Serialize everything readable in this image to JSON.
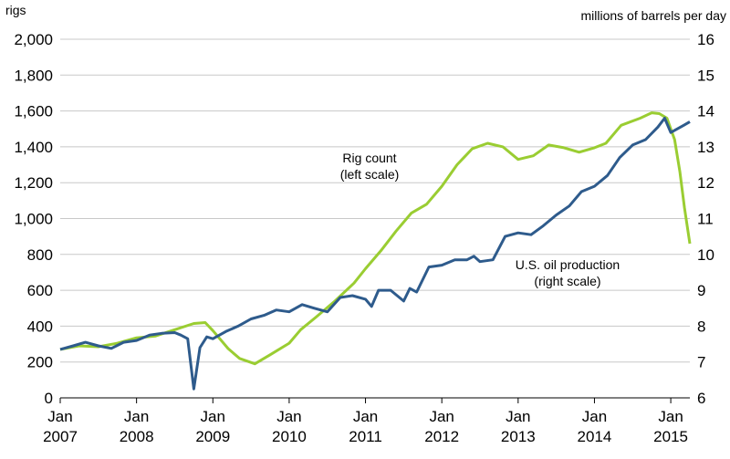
{
  "chart_data": {
    "type": "line",
    "title": "",
    "left_axis": {
      "label": "rigs",
      "ylim": [
        0,
        2000
      ],
      "ticks": [
        "0",
        "200",
        "400",
        "600",
        "800",
        "1,000",
        "1,200",
        "1,400",
        "1,600",
        "1,800",
        "2,000"
      ],
      "tick_values": [
        0,
        200,
        400,
        600,
        800,
        1000,
        1200,
        1400,
        1600,
        1800,
        2000
      ]
    },
    "right_axis": {
      "label": "millions of barrels per day",
      "ylim": [
        6,
        16
      ],
      "ticks": [
        "6",
        "7",
        "8",
        "9",
        "10",
        "11",
        "12",
        "13",
        "14",
        "15",
        "16"
      ],
      "tick_values": [
        6,
        7,
        8,
        9,
        10,
        11,
        12,
        13,
        14,
        15,
        16
      ]
    },
    "x_axis": {
      "xlim": [
        2007.0,
        2015.25
      ],
      "ticks": [
        {
          "value": 2007,
          "month": "Jan",
          "year": "2007"
        },
        {
          "value": 2008,
          "month": "Jan",
          "year": "2008"
        },
        {
          "value": 2009,
          "month": "Jan",
          "year": "2009"
        },
        {
          "value": 2010,
          "month": "Jan",
          "year": "2010"
        },
        {
          "value": 2011,
          "month": "Jan",
          "year": "2011"
        },
        {
          "value": 2012,
          "month": "Jan",
          "year": "2012"
        },
        {
          "value": 2013,
          "month": "Jan",
          "year": "2013"
        },
        {
          "value": 2014,
          "month": "Jan",
          "year": "2014"
        },
        {
          "value": 2015,
          "month": "Jan",
          "year": "2015"
        }
      ]
    },
    "series": [
      {
        "name": "Rig count",
        "axis": "left",
        "color": "#9ACD32",
        "annotation": [
          "Rig count",
          "(left scale)"
        ],
        "points": [
          [
            2007.0,
            270
          ],
          [
            2007.25,
            290
          ],
          [
            2007.5,
            285
          ],
          [
            2007.75,
            305
          ],
          [
            2008.0,
            335
          ],
          [
            2008.25,
            345
          ],
          [
            2008.5,
            380
          ],
          [
            2008.75,
            415
          ],
          [
            2008.9,
            420
          ],
          [
            2009.0,
            375
          ],
          [
            2009.2,
            275
          ],
          [
            2009.35,
            220
          ],
          [
            2009.55,
            190
          ],
          [
            2009.75,
            240
          ],
          [
            2010.0,
            305
          ],
          [
            2010.15,
            380
          ],
          [
            2010.35,
            450
          ],
          [
            2010.6,
            540
          ],
          [
            2010.85,
            640
          ],
          [
            2011.0,
            720
          ],
          [
            2011.2,
            820
          ],
          [
            2011.4,
            930
          ],
          [
            2011.6,
            1030
          ],
          [
            2011.8,
            1080
          ],
          [
            2012.0,
            1180
          ],
          [
            2012.2,
            1300
          ],
          [
            2012.4,
            1390
          ],
          [
            2012.6,
            1420
          ],
          [
            2012.8,
            1400
          ],
          [
            2013.0,
            1330
          ],
          [
            2013.2,
            1350
          ],
          [
            2013.4,
            1410
          ],
          [
            2013.6,
            1395
          ],
          [
            2013.8,
            1370
          ],
          [
            2014.0,
            1395
          ],
          [
            2014.15,
            1420
          ],
          [
            2014.35,
            1520
          ],
          [
            2014.6,
            1560
          ],
          [
            2014.75,
            1590
          ],
          [
            2014.85,
            1585
          ],
          [
            2014.95,
            1560
          ],
          [
            2015.05,
            1440
          ],
          [
            2015.12,
            1260
          ],
          [
            2015.18,
            1060
          ],
          [
            2015.25,
            860
          ]
        ]
      },
      {
        "name": "U.S. oil production",
        "axis": "right",
        "color": "#2E5B8C",
        "annotation": [
          "U.S. oil production",
          "(right scale)"
        ],
        "points": [
          [
            2007.0,
            7.35
          ],
          [
            2007.17,
            7.45
          ],
          [
            2007.33,
            7.55
          ],
          [
            2007.5,
            7.45
          ],
          [
            2007.67,
            7.38
          ],
          [
            2007.83,
            7.55
          ],
          [
            2008.0,
            7.6
          ],
          [
            2008.17,
            7.75
          ],
          [
            2008.33,
            7.8
          ],
          [
            2008.5,
            7.82
          ],
          [
            2008.58,
            7.75
          ],
          [
            2008.67,
            7.65
          ],
          [
            2008.75,
            6.25
          ],
          [
            2008.83,
            7.4
          ],
          [
            2008.92,
            7.7
          ],
          [
            2009.0,
            7.65
          ],
          [
            2009.17,
            7.85
          ],
          [
            2009.33,
            8.0
          ],
          [
            2009.5,
            8.2
          ],
          [
            2009.67,
            8.3
          ],
          [
            2009.83,
            8.45
          ],
          [
            2010.0,
            8.4
          ],
          [
            2010.17,
            8.6
          ],
          [
            2010.33,
            8.5
          ],
          [
            2010.5,
            8.4
          ],
          [
            2010.67,
            8.8
          ],
          [
            2010.83,
            8.85
          ],
          [
            2011.0,
            8.75
          ],
          [
            2011.08,
            8.55
          ],
          [
            2011.17,
            9.0
          ],
          [
            2011.33,
            9.0
          ],
          [
            2011.5,
            8.7
          ],
          [
            2011.58,
            9.05
          ],
          [
            2011.67,
            8.95
          ],
          [
            2011.83,
            9.65
          ],
          [
            2012.0,
            9.7
          ],
          [
            2012.17,
            9.85
          ],
          [
            2012.33,
            9.85
          ],
          [
            2012.42,
            9.95
          ],
          [
            2012.5,
            9.8
          ],
          [
            2012.67,
            9.85
          ],
          [
            2012.83,
            10.5
          ],
          [
            2013.0,
            10.6
          ],
          [
            2013.17,
            10.55
          ],
          [
            2013.33,
            10.8
          ],
          [
            2013.5,
            11.1
          ],
          [
            2013.67,
            11.35
          ],
          [
            2013.83,
            11.75
          ],
          [
            2014.0,
            11.9
          ],
          [
            2014.17,
            12.2
          ],
          [
            2014.33,
            12.7
          ],
          [
            2014.5,
            13.05
          ],
          [
            2014.67,
            13.2
          ],
          [
            2014.83,
            13.55
          ],
          [
            2014.92,
            13.8
          ],
          [
            2015.0,
            13.4
          ],
          [
            2015.17,
            13.6
          ],
          [
            2015.25,
            13.7
          ]
        ]
      }
    ]
  }
}
